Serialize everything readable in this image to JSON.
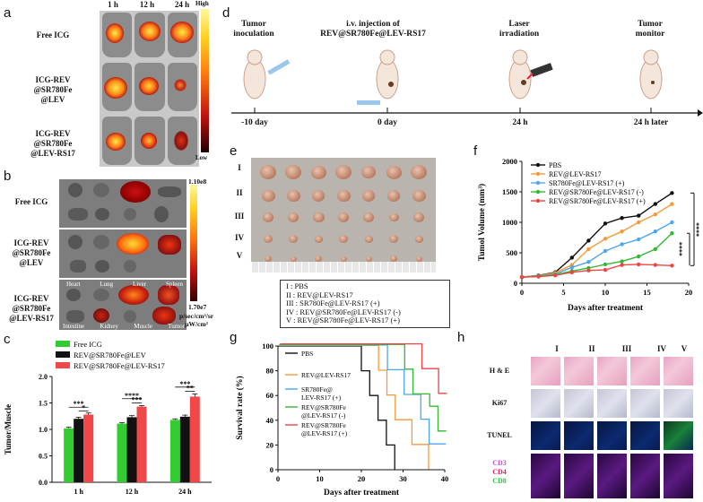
{
  "panels": {
    "a": "a",
    "b": "b",
    "c": "c",
    "d": "d",
    "e": "e",
    "f": "f",
    "g": "g",
    "h": "h"
  },
  "panel_a": {
    "times": [
      "1 h",
      "12 h",
      "24 h"
    ],
    "rows": [
      [
        "Free ICG"
      ],
      [
        "ICG-REV",
        "@SR780Fe",
        "@LEV"
      ],
      [
        "ICG-REV",
        "@SR780Fe",
        "@LEV-RS17"
      ]
    ],
    "scale_high": "High",
    "scale_low": "Low"
  },
  "panel_b": {
    "rows": [
      [
        "Free ICG"
      ],
      [
        "ICG-REV",
        "@SR780Fe",
        "@LEV"
      ],
      [
        "ICG-REV",
        "@SR780Fe",
        "@LEV-RS17"
      ]
    ],
    "organs_top": [
      "Heart",
      "Lung",
      "Liver",
      "Spleen"
    ],
    "organs_bottom": [
      "Intestine",
      "Kidney",
      "Muscle",
      "Tumor"
    ],
    "scale_max": "1.10e8",
    "scale_min": "1.70e7",
    "units": [
      "p/sec/cm²/sr",
      "μW/cm²"
    ]
  },
  "panel_d": {
    "steps": [
      [
        "Tumor",
        "inoculation"
      ],
      [
        "i.v. injection of",
        "REV@SR780Fe@LEV-RS17"
      ],
      [
        "Laser",
        "irradiation"
      ],
      [
        "Tumor",
        "monitor"
      ]
    ],
    "timepoints": [
      "-10 day",
      "0 day",
      "24 h",
      "24 h later"
    ]
  },
  "panel_e": {
    "row_labels": [
      "I",
      "II",
      "III",
      "IV",
      "V"
    ],
    "legend": [
      "I : PBS",
      "II : REV@LEV-RS17",
      "III : SR780Fe@LEV-RS17 (+)",
      "IV : REV@SR780Fe@LEV-RS17 (-)",
      "V : REV@SR780Fe@LEV-RS17 (+)"
    ]
  },
  "panel_h": {
    "col_labels": [
      "I",
      "II",
      "III",
      "IV",
      "V"
    ],
    "row_labels": [
      "H & E",
      "Ki67",
      "TUNEL"
    ],
    "cd_labels": [
      "CD3",
      "CD4",
      "CD8"
    ],
    "cd_colors": [
      "#c84fd8",
      "#e0245e",
      "#33c24a"
    ]
  },
  "chart_data": [
    {
      "id": "c",
      "type": "bar",
      "categories": [
        "1 h",
        "12 h",
        "24 h"
      ],
      "series": [
        {
          "name": "Free ICG",
          "color": "#33cc33",
          "values": [
            1.02,
            1.11,
            1.18
          ],
          "errors": [
            0.02,
            0.02,
            0.02
          ]
        },
        {
          "name": "REV@SR780Fe@LEV",
          "color": "#111111",
          "values": [
            1.2,
            1.23,
            1.24
          ],
          "errors": [
            0.03,
            0.03,
            0.03
          ]
        },
        {
          "name": "REV@SR780Fe@LEV-RS17",
          "color": "#f04848",
          "values": [
            1.28,
            1.43,
            1.62
          ],
          "errors": [
            0.03,
            0.02,
            0.05
          ]
        }
      ],
      "ylabel": "Tumor/Muscle",
      "ylim": [
        0,
        2.0
      ],
      "yticks": [
        "0.0",
        "0.5",
        "1.0",
        "1.5",
        "2.0"
      ],
      "significance": [
        {
          "pair": [
            0,
            2
          ],
          "cat": 0,
          "text": "***",
          "level": 1.42
        },
        {
          "pair": [
            1,
            2
          ],
          "cat": 0,
          "text": "*",
          "level": 1.35
        },
        {
          "pair": [
            0,
            2
          ],
          "cat": 1,
          "text": "****",
          "level": 1.58
        },
        {
          "pair": [
            1,
            2
          ],
          "cat": 1,
          "text": "***",
          "level": 1.5
        },
        {
          "pair": [
            0,
            2
          ],
          "cat": 2,
          "text": "***",
          "level": 1.8
        },
        {
          "pair": [
            1,
            2
          ],
          "cat": 2,
          "text": "**",
          "level": 1.72
        }
      ]
    },
    {
      "id": "f",
      "type": "line",
      "x": [
        0,
        2,
        4,
        6,
        8,
        10,
        12,
        14,
        16,
        18
      ],
      "series": [
        {
          "name": "PBS",
          "color": "#111111",
          "values": [
            100,
            130,
            180,
            420,
            700,
            980,
            1070,
            1110,
            1300,
            1480
          ]
        },
        {
          "name": "REV@LEV-RS17",
          "color": "#f59a3a",
          "values": [
            100,
            125,
            170,
            300,
            560,
            730,
            850,
            1000,
            1130,
            1300
          ]
        },
        {
          "name": "SR780Fe@LEV-RS17 (+)",
          "color": "#4da6ee",
          "values": [
            100,
            120,
            150,
            260,
            350,
            530,
            640,
            720,
            850,
            1000
          ]
        },
        {
          "name": "REV@SR780Fe@LEV-RS17 (-)",
          "color": "#33b933",
          "values": [
            100,
            115,
            140,
            200,
            250,
            310,
            360,
            440,
            560,
            820
          ]
        },
        {
          "name": "REV@SR780Fe@LEV-RS17 (+)",
          "color": "#ee4444",
          "values": [
            100,
            110,
            130,
            180,
            210,
            220,
            300,
            310,
            300,
            290
          ]
        }
      ],
      "xlabel": "Days after treatment",
      "ylabel": "Tumol Volume (mm³)",
      "xlim": [
        0,
        20
      ],
      "ylim": [
        0,
        2000
      ],
      "xticks": [
        "0",
        "5",
        "10",
        "15",
        "20"
      ],
      "yticks": [
        "0",
        "500",
        "1000",
        "1500",
        "2000"
      ],
      "significance": [
        "****",
        "****"
      ]
    },
    {
      "id": "g",
      "type": "line",
      "step": true,
      "series": [
        {
          "name": "PBS",
          "color": "#111111",
          "x": [
            0,
            18,
            20,
            22,
            24,
            26,
            28
          ],
          "values": [
            100,
            100,
            80,
            60,
            40,
            20,
            0
          ]
        },
        {
          "name": "REV@LEV-RS17",
          "color": "#f59a3a",
          "x": [
            0,
            22,
            24,
            26,
            28,
            32,
            36
          ],
          "values": [
            100,
            100,
            80,
            60,
            40,
            20,
            0
          ]
        },
        {
          "name": "SR780Fe@LEV-RS17 (+)",
          "color": "#4da6ee",
          "x": [
            0,
            24,
            26,
            30,
            34,
            36,
            40
          ],
          "values": [
            100,
            100,
            80,
            60,
            40,
            20,
            20
          ]
        },
        {
          "name": "REV@SR780Fe@LEV-RS17 (-)",
          "color": "#33b933",
          "x": [
            0,
            26,
            30,
            32,
            36,
            38,
            40
          ],
          "values": [
            100,
            100,
            80,
            60,
            50,
            30,
            30
          ]
        },
        {
          "name": "REV@SR780Fe@LEV-RS17 (+)",
          "color": "#ee4444",
          "x": [
            0,
            30,
            34,
            38,
            40
          ],
          "values": [
            100,
            100,
            80,
            60,
            60
          ]
        }
      ],
      "legend_labels": [
        [
          "PBS"
        ],
        [
          "REV@LEV-RS17"
        ],
        [
          "SR780Fe@",
          "LEV-RS17 (+)"
        ],
        [
          "REV@SR780Fe",
          "@LEV-RS17 (-)"
        ],
        [
          "REV@SR780Fe",
          "@LEV-RS17 (+)"
        ]
      ],
      "xlabel": "Days after treatment",
      "ylabel": "Survival rate (%)",
      "xlim": [
        0,
        40
      ],
      "ylim": [
        0,
        100
      ],
      "xticks": [
        "0",
        "10",
        "20",
        "30",
        "40"
      ],
      "yticks": [
        "0",
        "20",
        "40",
        "60",
        "80",
        "100"
      ]
    }
  ]
}
